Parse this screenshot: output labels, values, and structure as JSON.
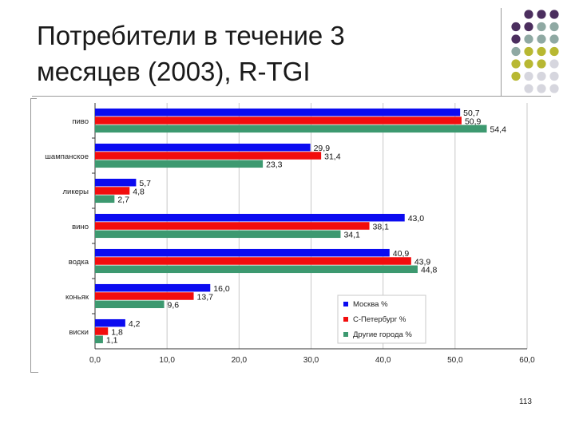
{
  "slide": {
    "title_line1": "Потребители в течение 3",
    "title_line2": "месяцев (2003), R-TGI",
    "page_number": "113"
  },
  "decor": {
    "dot_colors": [
      "#4b2e5e",
      "#8fa9a3",
      "#b8b832",
      "#d6d6de"
    ]
  },
  "chart_data": {
    "type": "bar",
    "orientation": "horizontal",
    "categories": [
      "пиво",
      "шампанское",
      "ликеры",
      "вино",
      "водка",
      "коньяк",
      "виски"
    ],
    "series": [
      {
        "name": "Москва %",
        "color": "#0b0bf0",
        "values": [
          50.7,
          29.9,
          5.7,
          43.0,
          40.9,
          16.0,
          4.2
        ],
        "labels": [
          "50,7",
          "29,9",
          "5,7",
          "43,0",
          "40,9",
          "16,0",
          "4,2"
        ]
      },
      {
        "name": "С-Петербург %",
        "color": "#f20d0d",
        "values": [
          50.9,
          31.4,
          4.8,
          38.1,
          43.9,
          13.7,
          1.8
        ],
        "labels": [
          "50,9",
          "31,4",
          "4,8",
          "38,1",
          "43,9",
          "13,7",
          "1,8"
        ]
      },
      {
        "name": "Другие города %",
        "color": "#3d9970",
        "values": [
          54.4,
          23.3,
          2.7,
          34.1,
          44.8,
          9.6,
          1.1
        ],
        "labels": [
          "54,4",
          "23,3",
          "2,7",
          "34,1",
          "44,8",
          "9,6",
          "1,1"
        ]
      }
    ],
    "xlim": [
      0,
      60
    ],
    "xticks": [
      0,
      10,
      20,
      30,
      40,
      50,
      60
    ],
    "xtick_labels": [
      "0,0",
      "10,0",
      "20,0",
      "30,0",
      "40,0",
      "50,0",
      "60,0"
    ],
    "grid": true,
    "legend_position": "bottom-right"
  }
}
